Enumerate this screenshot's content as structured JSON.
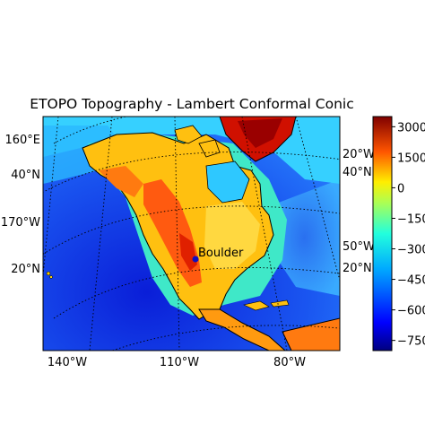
{
  "title": "ETOPO Topography - Lambert Conformal Conic",
  "projection": "Lambert Conformal Conic",
  "colormap": "jet",
  "marker": {
    "label": "Boulder",
    "lon": -105.27,
    "lat": 40.01,
    "color": "#1010c0"
  },
  "axis_labels": {
    "left": [
      "160°E",
      "40°N",
      "170°W",
      "20°N"
    ],
    "right": [
      "20°W",
      "40°N",
      "50°W",
      "20°N"
    ],
    "bottom": [
      "140°W",
      "110°W",
      "80°W"
    ]
  },
  "colorbar": {
    "ticks": [
      "3000",
      "1500",
      "0",
      "−1500",
      "−3000",
      "−4500",
      "−6000",
      "−7500"
    ],
    "range": [
      -8000,
      3500
    ]
  },
  "colors": {
    "deep_ocean": "#0000a0",
    "shelf": "#2ad0ff",
    "lowland": "#ffd000",
    "highland": "#ff4000",
    "ice_cap": "#a00000"
  }
}
